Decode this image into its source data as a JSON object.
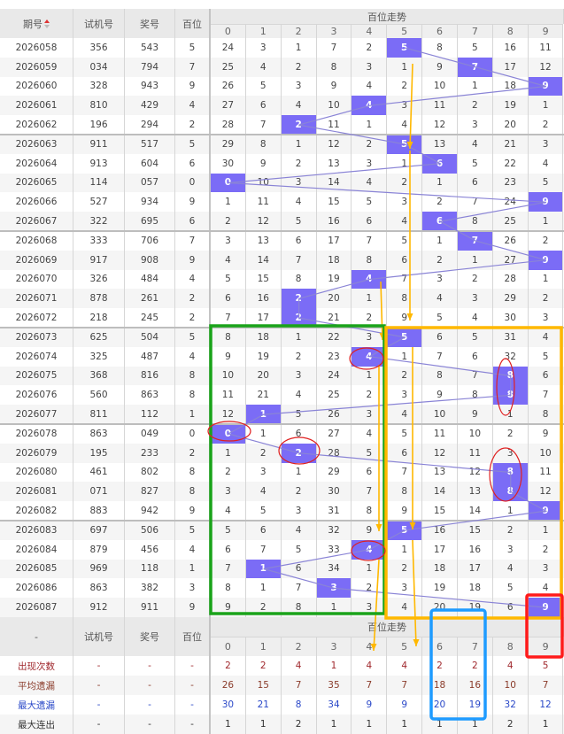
{
  "header": {
    "issue": "期号",
    "test": "试机号",
    "prize": "奖号",
    "hundred": "百位",
    "trend": "百位走势",
    "digits": [
      "0",
      "1",
      "2",
      "3",
      "4",
      "5",
      "6",
      "7",
      "8",
      "9"
    ]
  },
  "footer_header": {
    "issue": "-",
    "test": "试机号",
    "prize": "奖号",
    "hundred": "百位",
    "trend": "百位走势"
  },
  "colors": {
    "hit": "#7b6cf6",
    "line": "#8a84d6",
    "green_box": "#1aa31a",
    "orange_box": "#ffb800",
    "blue_box": "#1e9bff",
    "red_box": "#ff1a1a"
  },
  "rows": [
    {
      "issue": "2026058",
      "test": "356",
      "prize": "543",
      "hundred": "5",
      "cells": [
        "24",
        "3",
        "1",
        "7",
        "2",
        "5",
        "8",
        "5",
        "16",
        "11"
      ]
    },
    {
      "issue": "2026059",
      "test": "034",
      "prize": "794",
      "hundred": "7",
      "cells": [
        "25",
        "4",
        "2",
        "8",
        "3",
        "1",
        "9",
        "7",
        "17",
        "12"
      ]
    },
    {
      "issue": "2026060",
      "test": "328",
      "prize": "943",
      "hundred": "9",
      "cells": [
        "26",
        "5",
        "3",
        "9",
        "4",
        "2",
        "10",
        "1",
        "18",
        "9"
      ]
    },
    {
      "issue": "2026061",
      "test": "810",
      "prize": "429",
      "hundred": "4",
      "cells": [
        "27",
        "6",
        "4",
        "10",
        "4",
        "3",
        "11",
        "2",
        "19",
        "1"
      ]
    },
    {
      "issue": "2026062",
      "test": "196",
      "prize": "294",
      "hundred": "2",
      "cells": [
        "28",
        "7",
        "2",
        "11",
        "1",
        "4",
        "12",
        "3",
        "20",
        "2"
      ]
    },
    {
      "issue": "2026063",
      "test": "911",
      "prize": "517",
      "hundred": "5",
      "cells": [
        "29",
        "8",
        "1",
        "12",
        "2",
        "5",
        "13",
        "4",
        "21",
        "3"
      ]
    },
    {
      "issue": "2026064",
      "test": "913",
      "prize": "604",
      "hundred": "6",
      "cells": [
        "30",
        "9",
        "2",
        "13",
        "3",
        "1",
        "6",
        "5",
        "22",
        "4"
      ]
    },
    {
      "issue": "2026065",
      "test": "114",
      "prize": "057",
      "hundred": "0",
      "cells": [
        "0",
        "10",
        "3",
        "14",
        "4",
        "2",
        "1",
        "6",
        "23",
        "5"
      ]
    },
    {
      "issue": "2026066",
      "test": "527",
      "prize": "934",
      "hundred": "9",
      "cells": [
        "1",
        "11",
        "4",
        "15",
        "5",
        "3",
        "2",
        "7",
        "24",
        "9"
      ]
    },
    {
      "issue": "2026067",
      "test": "322",
      "prize": "695",
      "hundred": "6",
      "cells": [
        "2",
        "12",
        "5",
        "16",
        "6",
        "4",
        "6",
        "8",
        "25",
        "1"
      ]
    },
    {
      "issue": "2026068",
      "test": "333",
      "prize": "706",
      "hundred": "7",
      "cells": [
        "3",
        "13",
        "6",
        "17",
        "7",
        "5",
        "1",
        "7",
        "26",
        "2"
      ]
    },
    {
      "issue": "2026069",
      "test": "917",
      "prize": "908",
      "hundred": "9",
      "cells": [
        "4",
        "14",
        "7",
        "18",
        "8",
        "6",
        "2",
        "1",
        "27",
        "9"
      ]
    },
    {
      "issue": "2026070",
      "test": "326",
      "prize": "484",
      "hundred": "4",
      "cells": [
        "5",
        "15",
        "8",
        "19",
        "4",
        "7",
        "3",
        "2",
        "28",
        "1"
      ]
    },
    {
      "issue": "2026071",
      "test": "878",
      "prize": "261",
      "hundred": "2",
      "cells": [
        "6",
        "16",
        "2",
        "20",
        "1",
        "8",
        "4",
        "3",
        "29",
        "2"
      ]
    },
    {
      "issue": "2026072",
      "test": "218",
      "prize": "245",
      "hundred": "2",
      "cells": [
        "7",
        "17",
        "2",
        "21",
        "2",
        "9",
        "5",
        "4",
        "30",
        "3"
      ]
    },
    {
      "issue": "2026073",
      "test": "625",
      "prize": "504",
      "hundred": "5",
      "cells": [
        "8",
        "18",
        "1",
        "22",
        "3",
        "5",
        "6",
        "5",
        "31",
        "4"
      ]
    },
    {
      "issue": "2026074",
      "test": "325",
      "prize": "487",
      "hundred": "4",
      "cells": [
        "9",
        "19",
        "2",
        "23",
        "4",
        "1",
        "7",
        "6",
        "32",
        "5"
      ]
    },
    {
      "issue": "2026075",
      "test": "368",
      "prize": "816",
      "hundred": "8",
      "cells": [
        "10",
        "20",
        "3",
        "24",
        "1",
        "2",
        "8",
        "7",
        "8",
        "6"
      ]
    },
    {
      "issue": "2026076",
      "test": "560",
      "prize": "863",
      "hundred": "8",
      "cells": [
        "11",
        "21",
        "4",
        "25",
        "2",
        "3",
        "9",
        "8",
        "8",
        "7"
      ]
    },
    {
      "issue": "2026077",
      "test": "811",
      "prize": "112",
      "hundred": "1",
      "cells": [
        "12",
        "1",
        "5",
        "26",
        "3",
        "4",
        "10",
        "9",
        "1",
        "8"
      ]
    },
    {
      "issue": "2026078",
      "test": "863",
      "prize": "049",
      "hundred": "0",
      "cells": [
        "0",
        "1",
        "6",
        "27",
        "4",
        "5",
        "11",
        "10",
        "2",
        "9"
      ]
    },
    {
      "issue": "2026079",
      "test": "195",
      "prize": "233",
      "hundred": "2",
      "cells": [
        "1",
        "2",
        "2",
        "28",
        "5",
        "6",
        "12",
        "11",
        "3",
        "10"
      ]
    },
    {
      "issue": "2026080",
      "test": "461",
      "prize": "802",
      "hundred": "8",
      "cells": [
        "2",
        "3",
        "1",
        "29",
        "6",
        "7",
        "13",
        "12",
        "8",
        "11"
      ]
    },
    {
      "issue": "2026081",
      "test": "071",
      "prize": "827",
      "hundred": "8",
      "cells": [
        "3",
        "4",
        "2",
        "30",
        "7",
        "8",
        "14",
        "13",
        "8",
        "12"
      ]
    },
    {
      "issue": "2026082",
      "test": "883",
      "prize": "942",
      "hundred": "9",
      "cells": [
        "4",
        "5",
        "3",
        "31",
        "8",
        "9",
        "15",
        "14",
        "1",
        "9"
      ]
    },
    {
      "issue": "2026083",
      "test": "697",
      "prize": "506",
      "hundred": "5",
      "cells": [
        "5",
        "6",
        "4",
        "32",
        "9",
        "5",
        "16",
        "15",
        "2",
        "1"
      ]
    },
    {
      "issue": "2026084",
      "test": "879",
      "prize": "456",
      "hundred": "4",
      "cells": [
        "6",
        "7",
        "5",
        "33",
        "4",
        "1",
        "17",
        "16",
        "3",
        "2"
      ]
    },
    {
      "issue": "2026085",
      "test": "969",
      "prize": "118",
      "hundred": "1",
      "cells": [
        "7",
        "1",
        "6",
        "34",
        "1",
        "2",
        "18",
        "17",
        "4",
        "3"
      ]
    },
    {
      "issue": "2026086",
      "test": "863",
      "prize": "382",
      "hundred": "3",
      "cells": [
        "8",
        "1",
        "7",
        "3",
        "2",
        "3",
        "19",
        "18",
        "5",
        "4"
      ]
    },
    {
      "issue": "2026087",
      "test": "912",
      "prize": "911",
      "hundred": "9",
      "cells": [
        "9",
        "2",
        "8",
        "1",
        "3",
        "4",
        "20",
        "19",
        "6",
        "9"
      ]
    }
  ],
  "stats": [
    {
      "label": "出现次数",
      "test": "-",
      "prize": "-",
      "hundred": "-",
      "cells": [
        "2",
        "2",
        "4",
        "1",
        "4",
        "4",
        "2",
        "2",
        "4",
        "5"
      ]
    },
    {
      "label": "平均遗漏",
      "test": "-",
      "prize": "-",
      "hundred": "-",
      "cells": [
        "26",
        "15",
        "7",
        "35",
        "7",
        "7",
        "18",
        "16",
        "10",
        "7"
      ]
    },
    {
      "label": "最大遗漏",
      "test": "-",
      "prize": "-",
      "hundred": "-",
      "cells": [
        "30",
        "21",
        "8",
        "34",
        "9",
        "9",
        "20",
        "19",
        "32",
        "12"
      ]
    },
    {
      "label": "最大连出",
      "test": "-",
      "prize": "-",
      "hundred": "-",
      "cells": [
        "1",
        "1",
        "2",
        "1",
        "1",
        "1",
        "1",
        "1",
        "2",
        "1"
      ]
    }
  ]
}
